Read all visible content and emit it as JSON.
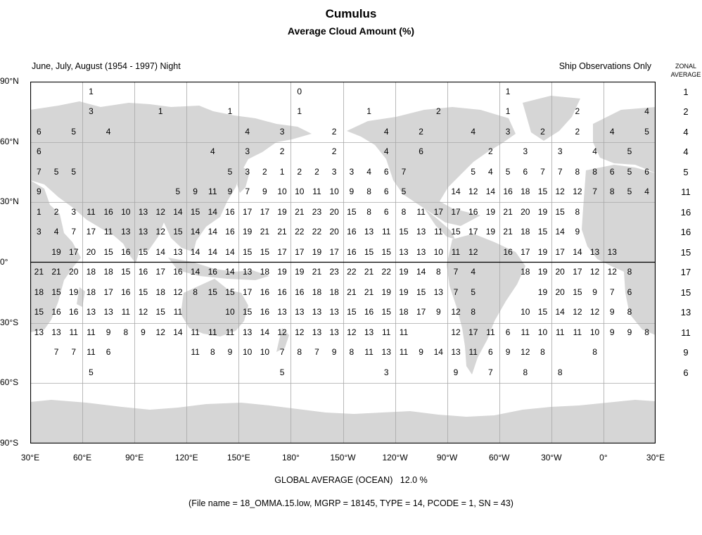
{
  "title": "Cumulus",
  "subtitle": "Average Cloud Amount (%)",
  "period": "June, July, August (1954 - 1997) Night",
  "source": "Ship Observations Only",
  "zonal_header_line1": "ZONAL",
  "zonal_header_line2": "AVERAGE",
  "lat_labels": [
    "90°N",
    "60°N",
    "30°N",
    "0°",
    "30°S",
    "60°S",
    "90°S"
  ],
  "lon_labels": [
    "30°E",
    "60°E",
    "90°E",
    "120°E",
    "150°E",
    "180°",
    "150°W",
    "120°W",
    "90°W",
    "60°W",
    "30°W",
    "0°",
    "30°E"
  ],
  "global_average_label": "GLOBAL AVERAGE (OCEAN)",
  "global_average_value": "12.0 %",
  "file_info": "(File name = 18_OMMA.15.low, MGRP = 18145, TYPE = 14, PCODE = 1, SN = 43)",
  "colors": {
    "land": "#d6d6d6",
    "ocean": "#ffffff",
    "grid": "#a8a8a8",
    "frame": "#000000"
  },
  "zonal_average": [
    "1",
    "2",
    "4",
    "4",
    "5",
    "11",
    "16",
    "16",
    "15",
    "17",
    "15",
    "13",
    "11",
    "9",
    "6"
  ],
  "grid_rows": [
    [
      "",
      "",
      "",
      "1",
      "",
      "",
      "",
      "",
      "",
      "",
      "",
      "",
      "",
      "",
      "",
      "0",
      "",
      "",
      "",
      "",
      "",
      "",
      "",
      "",
      "",
      "",
      "",
      "1",
      "",
      "",
      "",
      "",
      "",
      "",
      "",
      "",
      ""
    ],
    [
      "",
      "",
      "",
      "3",
      "",
      "",
      "",
      "1",
      "",
      "",
      "",
      "1",
      "",
      "",
      "",
      "1",
      "",
      "",
      "",
      "1",
      "",
      "",
      "",
      "2",
      "",
      "",
      "",
      "1",
      "",
      "",
      "",
      "2",
      "",
      "",
      "",
      "4",
      ""
    ],
    [
      "6",
      "",
      "5",
      "",
      "4",
      "",
      "",
      "",
      "",
      "",
      "",
      "",
      "4",
      "",
      "3",
      "",
      "",
      "2",
      "",
      "",
      "4",
      "",
      "2",
      "",
      "",
      "4",
      "",
      "3",
      "",
      "2",
      "",
      "2",
      "",
      "4",
      "",
      "5",
      "6",
      "6"
    ],
    [
      "6",
      "",
      "",
      "",
      "",
      "",
      "",
      "",
      "",
      "",
      "4",
      "",
      "3",
      "",
      "2",
      "",
      "",
      "2",
      "",
      "",
      "4",
      "",
      "6",
      "",
      "",
      "",
      "2",
      "",
      "3",
      "",
      "3",
      "",
      "4",
      "",
      "5",
      "",
      "6",
      "6"
    ],
    [
      "7",
      "5",
      "5",
      "",
      "",
      "",
      "",
      "",
      "",
      "",
      "",
      "5",
      "3",
      "2",
      "1",
      "2",
      "2",
      "3",
      "3",
      "4",
      "6",
      "7",
      "",
      "",
      "",
      "5",
      "4",
      "5",
      "6",
      "7",
      "7",
      "8",
      "8",
      "6",
      "5",
      "6"
    ],
    [
      "9",
      "",
      "",
      "",
      "",
      "",
      "",
      "",
      "5",
      "9",
      "11",
      "9",
      "7",
      "9",
      "10",
      "10",
      "11",
      "10",
      "9",
      "8",
      "6",
      "5",
      "",
      "",
      "14",
      "12",
      "14",
      "16",
      "18",
      "15",
      "12",
      "12",
      "7",
      "8",
      "5",
      "4"
    ],
    [
      "1",
      "2",
      "3",
      "11",
      "16",
      "10",
      "13",
      "12",
      "14",
      "15",
      "14",
      "16",
      "17",
      "17",
      "19",
      "21",
      "23",
      "20",
      "15",
      "8",
      "6",
      "8",
      "11",
      "17",
      "17",
      "16",
      "19",
      "21",
      "20",
      "19",
      "15",
      "8",
      "",
      "",
      "",
      ""
    ],
    [
      "3",
      "4",
      "7",
      "17",
      "11",
      "13",
      "13",
      "12",
      "15",
      "14",
      "14",
      "16",
      "19",
      "21",
      "21",
      "22",
      "22",
      "20",
      "16",
      "13",
      "11",
      "15",
      "13",
      "11",
      "15",
      "17",
      "19",
      "21",
      "18",
      "15",
      "14",
      "9",
      "",
      "",
      "",
      ""
    ],
    [
      "",
      "19",
      "17",
      "20",
      "15",
      "16",
      "15",
      "14",
      "13",
      "14",
      "14",
      "14",
      "15",
      "15",
      "17",
      "17",
      "19",
      "17",
      "16",
      "15",
      "15",
      "13",
      "13",
      "10",
      "11",
      "12",
      "",
      "16",
      "17",
      "19",
      "17",
      "14",
      "13",
      "13",
      "",
      ""
    ],
    [
      "21",
      "21",
      "20",
      "18",
      "18",
      "15",
      "16",
      "17",
      "16",
      "14",
      "16",
      "14",
      "13",
      "18",
      "19",
      "19",
      "21",
      "23",
      "22",
      "21",
      "22",
      "19",
      "14",
      "8",
      "7",
      "4",
      "",
      "",
      "18",
      "19",
      "20",
      "17",
      "12",
      "12",
      "8",
      ""
    ],
    [
      "18",
      "15",
      "19",
      "18",
      "17",
      "16",
      "15",
      "18",
      "12",
      "8",
      "15",
      "15",
      "17",
      "16",
      "16",
      "16",
      "18",
      "18",
      "21",
      "21",
      "19",
      "19",
      "15",
      "13",
      "7",
      "5",
      "",
      "",
      "",
      "19",
      "20",
      "15",
      "9",
      "7",
      "6",
      ""
    ],
    [
      "15",
      "16",
      "16",
      "13",
      "13",
      "11",
      "12",
      "15",
      "11",
      "",
      "",
      "10",
      "15",
      "16",
      "13",
      "13",
      "13",
      "13",
      "15",
      "16",
      "15",
      "18",
      "17",
      "9",
      "12",
      "8",
      "",
      "",
      "10",
      "15",
      "14",
      "12",
      "12",
      "9",
      "8",
      ""
    ],
    [
      "13",
      "13",
      "11",
      "11",
      "9",
      "8",
      "9",
      "12",
      "14",
      "11",
      "11",
      "11",
      "13",
      "14",
      "12",
      "12",
      "13",
      "13",
      "12",
      "13",
      "11",
      "11",
      "",
      "",
      "12",
      "17",
      "11",
      "6",
      "11",
      "10",
      "11",
      "11",
      "10",
      "9",
      "9",
      "8"
    ],
    [
      "",
      "7",
      "7",
      "11",
      "6",
      "",
      "",
      "",
      "",
      "11",
      "8",
      "9",
      "10",
      "10",
      "7",
      "8",
      "7",
      "9",
      "8",
      "11",
      "13",
      "11",
      "9",
      "14",
      "13",
      "11",
      "6",
      "9",
      "12",
      "8",
      "",
      "",
      "8",
      "",
      "",
      ""
    ],
    [
      "",
      "",
      "",
      "5",
      "",
      "",
      "",
      "",
      "",
      "",
      "",
      "",
      "",
      "",
      "5",
      "",
      "",
      "",
      "",
      "",
      "3",
      "",
      "",
      "",
      "9",
      "",
      "7",
      "",
      "8",
      "",
      "8",
      "",
      "",
      "",
      "",
      ""
    ]
  ]
}
